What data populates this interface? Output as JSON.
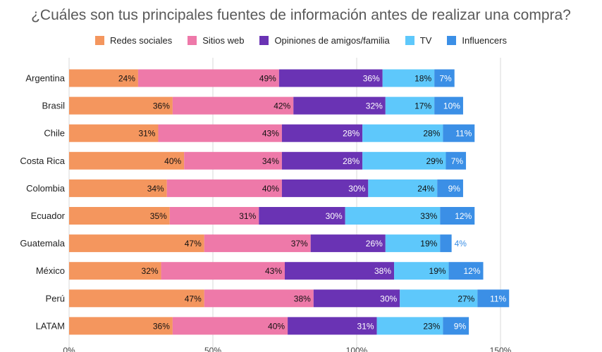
{
  "title": "¿Cuáles son tus principales fuentes de información antes de realizar una compra?",
  "chart_data": {
    "type": "bar",
    "orientation": "horizontal",
    "stacked": true,
    "title": "¿Cuáles son tus principales fuentes de información antes de realizar una compra?",
    "categories": [
      "Argentina",
      "Brasil",
      "Chile",
      "Costa Rica",
      "Colombia",
      "Ecuador",
      "Guatemala",
      "México",
      "Perú",
      "LATAM"
    ],
    "series": [
      {
        "name": "Redes sociales",
        "color": "#f4965e",
        "label_color": "#111111",
        "values": [
          24,
          36,
          31,
          40,
          34,
          35,
          47,
          32,
          47,
          36
        ]
      },
      {
        "name": "Sitios web",
        "color": "#ee79a9",
        "label_color": "#111111",
        "values": [
          49,
          42,
          43,
          34,
          40,
          31,
          37,
          43,
          38,
          40
        ]
      },
      {
        "name": "Opiniones de amigos/familia",
        "color": "#6a33b4",
        "label_color": "#ffffff",
        "values": [
          36,
          32,
          28,
          28,
          30,
          30,
          26,
          38,
          30,
          31
        ]
      },
      {
        "name": "TV",
        "color": "#5ec8fb",
        "label_color": "#111111",
        "values": [
          18,
          17,
          28,
          29,
          24,
          33,
          19,
          19,
          27,
          23
        ]
      },
      {
        "name": "Influencers",
        "color": "#3b8fe6",
        "label_color": "#ffffff",
        "values": [
          7,
          10,
          11,
          7,
          9,
          12,
          4,
          12,
          11,
          9
        ]
      }
    ],
    "value_suffix": "%",
    "xlim": [
      0,
      150
    ],
    "xticks": [
      "0%",
      "50%",
      "100%",
      "150%"
    ],
    "grid": true,
    "legend_position": "top"
  }
}
